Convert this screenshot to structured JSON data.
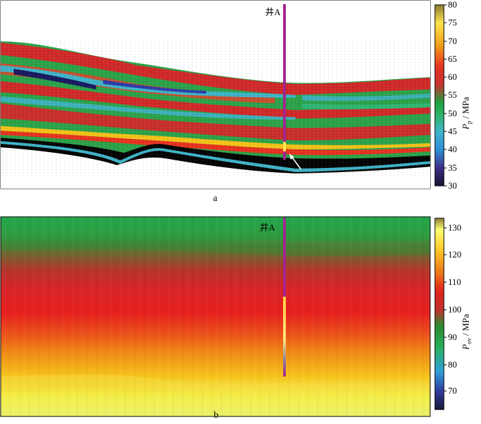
{
  "panel_a": {
    "label": "a",
    "well_label": "井A",
    "colorbar": {
      "var": "P",
      "sub": "p",
      "unit": " / MPa",
      "ticks": [
        "80",
        "75",
        "70",
        "65",
        "60",
        "55",
        "50",
        "45",
        "40",
        "35",
        "30"
      ],
      "stops": [
        "#1a1030",
        "#3c2f86",
        "#2f8fd6",
        "#3fb4c8",
        "#2fb673",
        "#1fa03c",
        "#c83232",
        "#e63320",
        "#f2a21a",
        "#ffe34c",
        "#8a7a35"
      ]
    },
    "colors": {
      "background": "#ffffff",
      "well": "#a4248f",
      "band_black": "#050505",
      "band_red": "#d02a2a",
      "band_green": "#2da24a",
      "band_cyan": "#3fb3c7",
      "band_blue": "#2c3da8"
    }
  },
  "panel_b": {
    "label": "b",
    "well_label": "井A",
    "colorbar": {
      "var": "P",
      "sub": "ov",
      "unit": " / MPa",
      "ticks": [
        "130",
        "120",
        "110",
        "100",
        "90",
        "80",
        "70"
      ],
      "stops": [
        "#181836",
        "#2f3fa0",
        "#2fa0d8",
        "#25b060",
        "#2f8a2f",
        "#c03030",
        "#e0251c",
        "#ef7a18",
        "#ffcc2a",
        "#ffff70",
        "#8a7a35"
      ]
    },
    "colors": {
      "well_top": "#a4248f",
      "well_bottom_grad": [
        "#ffd040",
        "#ffe480",
        "#8a7fa0",
        "#a4248f"
      ],
      "field": [
        "#23a84a",
        "#3a8a3a",
        "#a8402c",
        "#d8242a",
        "#e6201e",
        "#e94a1c",
        "#f08a16",
        "#f7c81e",
        "#f3ee4a",
        "#ebf06a"
      ]
    }
  }
}
